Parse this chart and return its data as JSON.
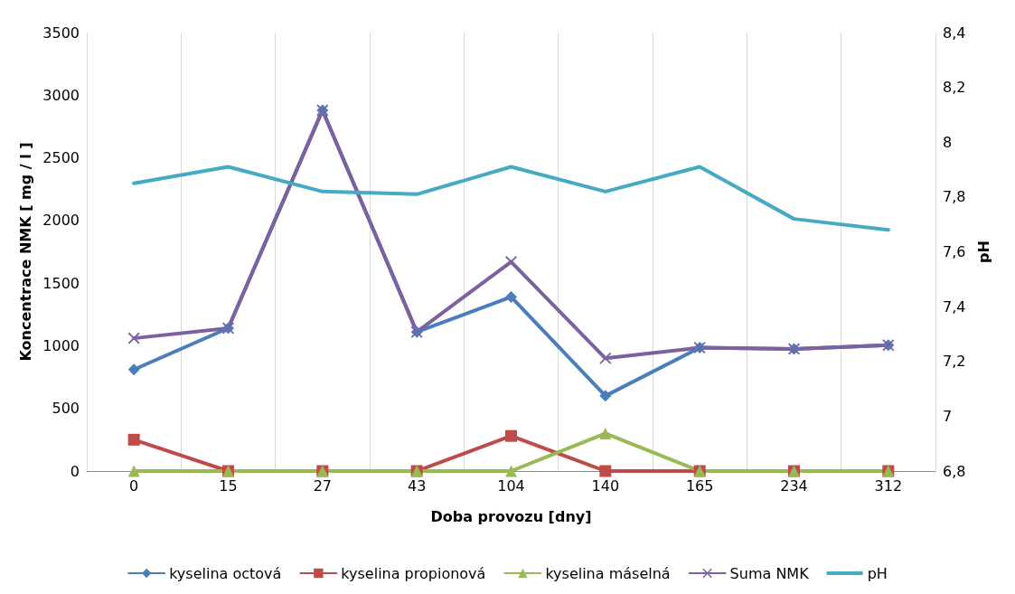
{
  "chart_data": {
    "type": "line",
    "xlabel": "Doba provozu [dny]",
    "ylabel": "Koncentrace NMK [ mg / l ]",
    "y2label": "pH",
    "categories": [
      "0",
      "15",
      "27",
      "43",
      "104",
      "140",
      "165",
      "234",
      "312"
    ],
    "series": [
      {
        "name": "kyselina octová",
        "color": "#4a7ebb",
        "marker": "diamond",
        "values": [
          810,
          1140,
          2880,
          1110,
          1390,
          600,
          985,
          975,
          1005
        ]
      },
      {
        "name": "kyselina propionová",
        "color": "#be4b48",
        "marker": "square",
        "values": [
          250,
          0,
          0,
          0,
          280,
          0,
          0,
          0,
          0
        ]
      },
      {
        "name": "kyselina máselná",
        "color": "#98b954",
        "marker": "triangle",
        "values": [
          0,
          0,
          0,
          0,
          0,
          300,
          0,
          0,
          0
        ]
      },
      {
        "name": "Suma NMK",
        "color": "#7d60a0",
        "marker": "cross",
        "values": [
          1060,
          1140,
          2880,
          1110,
          1670,
          900,
          985,
          975,
          1005
        ]
      },
      {
        "name": "pH",
        "color": "#46aac5",
        "marker": "none",
        "axis": "y2",
        "values": [
          7.85,
          7.91,
          7.82,
          7.81,
          7.91,
          7.82,
          7.91,
          7.72,
          7.68
        ]
      }
    ],
    "ylim": [
      0,
      3500
    ],
    "yticks": [
      0,
      500,
      1000,
      1500,
      2000,
      2500,
      3000,
      3500
    ],
    "y2lim": [
      6.8,
      8.4
    ],
    "y2ticks": [
      {
        "value": 6.8,
        "label": "6,8"
      },
      7,
      {
        "value": 7.2,
        "label": "7,2"
      },
      {
        "value": 7.4,
        "label": "7,4"
      },
      {
        "value": 7.6,
        "label": "7,6"
      },
      8,
      {
        "value": 7.8,
        "label": "7,8"
      },
      {
        "value": 8.2,
        "label": "8,2"
      },
      {
        "value": 8.4,
        "label": "8,4"
      }
    ],
    "grid": "x",
    "legend": "bottom",
    "line_style": "solid"
  }
}
